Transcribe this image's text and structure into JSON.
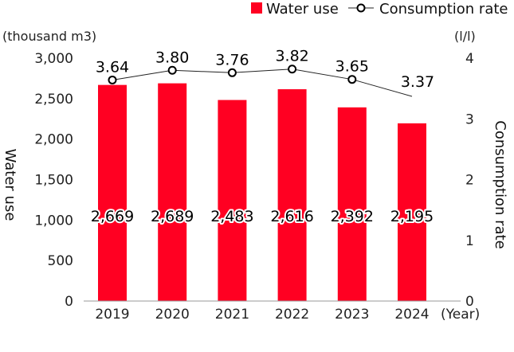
{
  "chart_data": {
    "type": "bar+line",
    "categories": [
      "2019",
      "2020",
      "2021",
      "2022",
      "2023",
      "2024"
    ],
    "xlabel_unit": "(Year)",
    "series": [
      {
        "name": "Water use",
        "type": "bar",
        "axis": "left",
        "color": "#ff0022",
        "values": [
          2669,
          2689,
          2483,
          2616,
          2392,
          2195
        ],
        "labels": [
          "2,669",
          "2,689",
          "2,483",
          "2,616",
          "2,392",
          "2,195"
        ]
      },
      {
        "name": "Consumption rate",
        "type": "line",
        "axis": "right",
        "color": "#222222",
        "values": [
          3.64,
          3.8,
          3.76,
          3.82,
          3.65,
          3.37
        ],
        "labels": [
          "3.64",
          "3.80",
          "3.76",
          "3.82",
          "3.65",
          "3.37"
        ]
      }
    ],
    "left_axis": {
      "label": "Water use",
      "unit": "(thousand m3)",
      "range": [
        0,
        3000
      ],
      "ticks": [
        "0",
        "500",
        "1,000",
        "1,500",
        "2,000",
        "2,500",
        "3,000"
      ]
    },
    "right_axis": {
      "label": "Consumption rate",
      "unit": "(l/l)",
      "range": [
        0,
        4
      ],
      "ticks": [
        "0",
        "1",
        "2",
        "3",
        "4"
      ]
    },
    "grid": false,
    "legend": "top-right"
  }
}
